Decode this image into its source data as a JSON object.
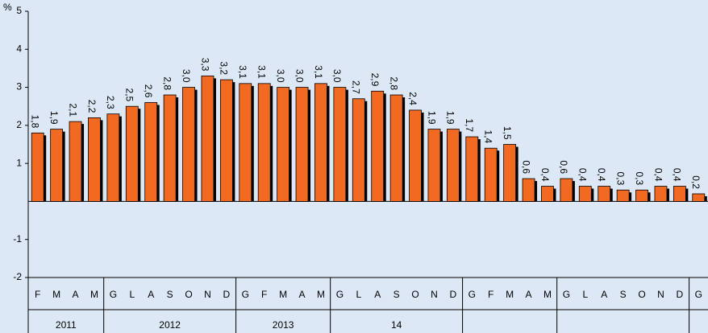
{
  "chart_data": {
    "type": "bar",
    "y_label": "%",
    "categories": [
      "F",
      "M",
      "A",
      "M",
      "G",
      "L",
      "A",
      "S",
      "O",
      "N",
      "D",
      "G",
      "F",
      "M",
      "A",
      "M",
      "G",
      "L",
      "A",
      "S",
      "O",
      "N",
      "D",
      "G",
      "F",
      "M",
      "A",
      "M",
      "G",
      "L",
      "A",
      "S",
      "O",
      "N",
      "D",
      "G"
    ],
    "values": [
      1.8,
      1.9,
      2.1,
      2.2,
      2.3,
      2.5,
      2.6,
      2.8,
      3.0,
      3.3,
      3.2,
      3.1,
      3.1,
      3.0,
      3.0,
      3.1,
      3.0,
      2.7,
      2.9,
      2.8,
      2.4,
      1.9,
      1.9,
      1.7,
      1.4,
      1.5,
      0.6,
      0.4,
      0.6,
      0.4,
      0.4,
      0.3,
      0.3,
      0.4,
      0.4,
      0.2
    ],
    "value_labels": [
      "1,8",
      "1,9",
      "2,1",
      "2,2",
      "2,3",
      "2,5",
      "2,6",
      "2,8",
      "3,0",
      "3,3",
      "3,2",
      "3,1",
      "3,1",
      "3,0",
      "3,0",
      "3,1",
      "3,0",
      "2,7",
      "2,9",
      "2,8",
      "2,4",
      "1,9",
      "1,9",
      "1,7",
      "1,4",
      "1,5",
      "0,6",
      "0,4",
      "0,6",
      "0,4",
      "0,4",
      "0,3",
      "0,3",
      "0,4",
      "0,4",
      "0,2"
    ],
    "years": [
      "2011",
      "2012",
      "2013",
      "14"
    ],
    "color": "#f26a21",
    "ylim": [
      -2,
      5
    ],
    "yticks": [
      -2,
      -1,
      1,
      2,
      3,
      4,
      5
    ]
  }
}
